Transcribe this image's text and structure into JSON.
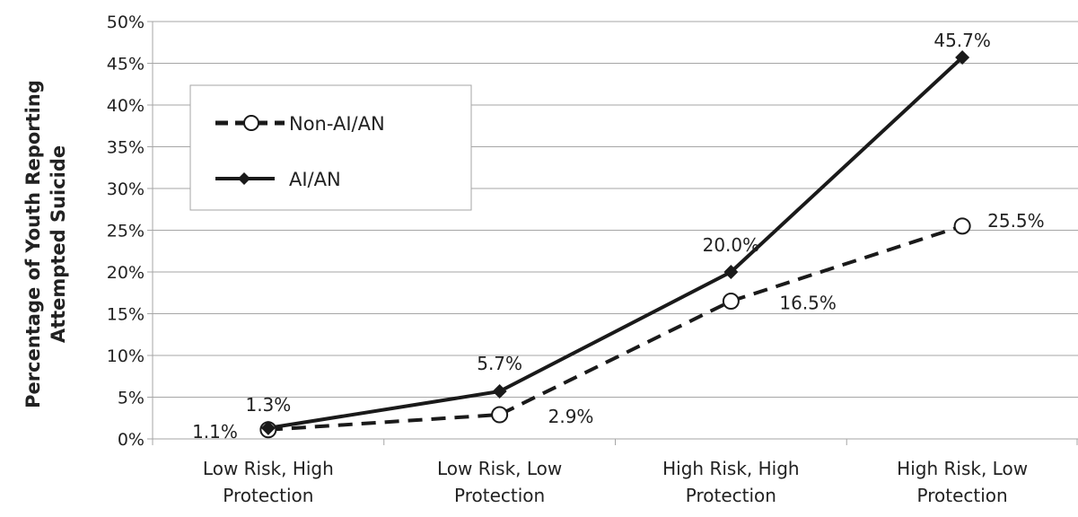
{
  "chart_data": {
    "type": "line",
    "title": "",
    "ylabel_lines": [
      "Percentage of Youth Reporting",
      "Attempted Suicide"
    ],
    "xlabel": "",
    "categories": [
      [
        "Low Risk, High",
        "Protection"
      ],
      [
        "Low Risk, Low",
        "Protection"
      ],
      [
        "High Risk, High",
        "Protection"
      ],
      [
        "High Risk, Low",
        "Protection"
      ]
    ],
    "ylim": [
      0,
      50
    ],
    "yticks": [
      0,
      5,
      10,
      15,
      20,
      25,
      30,
      35,
      40,
      45,
      50
    ],
    "ytick_labels": [
      "0%",
      "5%",
      "10%",
      "15%",
      "20%",
      "25%",
      "30%",
      "35%",
      "40%",
      "45%",
      "50%"
    ],
    "grid": true,
    "legend_position": "top-left",
    "series": [
      {
        "name": "Non-AI/AN",
        "values": [
          1.1,
          2.9,
          16.5,
          25.5
        ],
        "labels": [
          "1.1%",
          "2.9%",
          "16.5%",
          "25.5%"
        ],
        "line_style": "dashed",
        "marker": "open-circle",
        "color": "#1a1a1a"
      },
      {
        "name": "AI/AN",
        "values": [
          1.3,
          5.7,
          20.0,
          45.7
        ],
        "labels": [
          "1.3%",
          "5.7%",
          "20.0%",
          "45.7%"
        ],
        "line_style": "solid",
        "marker": "diamond",
        "color": "#1a1a1a"
      }
    ]
  }
}
